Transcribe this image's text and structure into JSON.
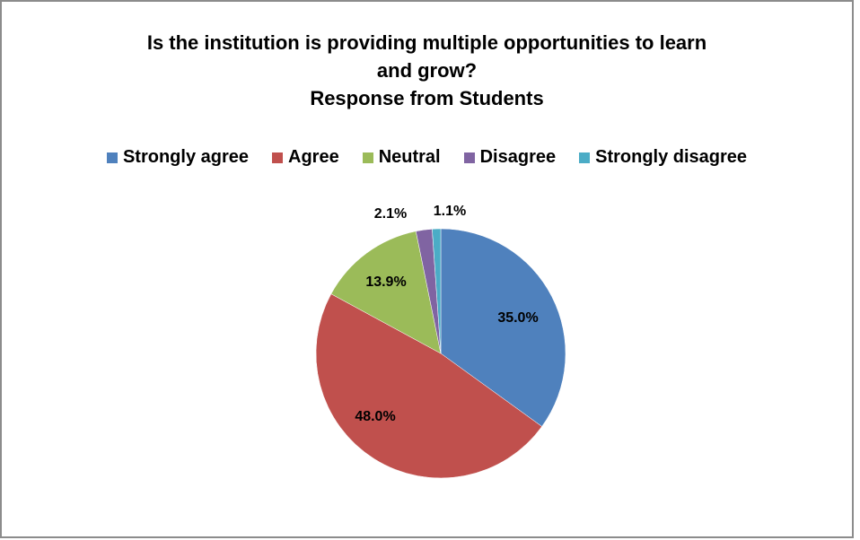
{
  "chart_data": {
    "type": "pie",
    "title_lines": [
      "Is the institution is providing multiple opportunities to learn",
      "and grow?",
      "Response from Students"
    ],
    "legend_placement": "top",
    "slices": [
      {
        "name": "Strongly agree",
        "value": 35.0,
        "label": "35.0%",
        "color": "#4f81bd"
      },
      {
        "name": "Agree",
        "value": 48.0,
        "label": "48.0%",
        "color": "#c0504d"
      },
      {
        "name": "Neutral",
        "value": 13.9,
        "label": "13.9%",
        "color": "#9bbb59"
      },
      {
        "name": "Disagree",
        "value": 2.1,
        "label": "2.1%",
        "color": "#8064a2"
      },
      {
        "name": "Strongly disagree",
        "value": 1.1,
        "label": "1.1%",
        "color": "#4bacc6"
      }
    ]
  }
}
